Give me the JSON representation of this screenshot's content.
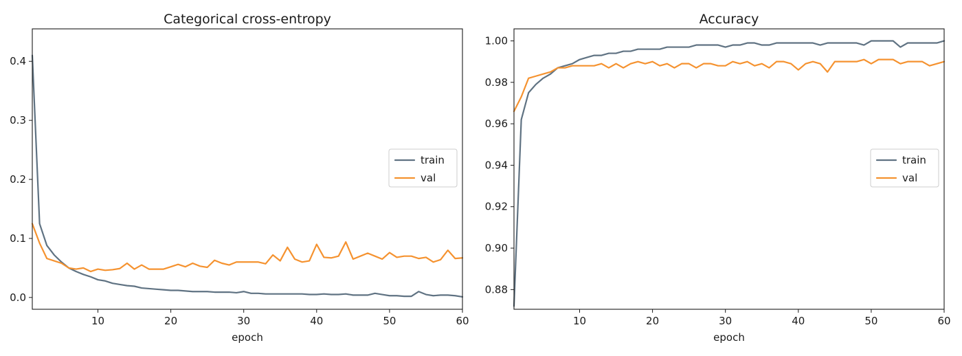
{
  "colors": {
    "train": "#5f7282",
    "val": "#f5922f"
  },
  "chart_data": [
    {
      "type": "line",
      "title": "Categorical cross-entropy",
      "xlabel": "epoch",
      "ylabel": "",
      "xlim": [
        1,
        60
      ],
      "ylim": [
        -0.02,
        0.455
      ],
      "xticks": [
        10,
        20,
        30,
        40,
        50,
        60
      ],
      "yticks": [
        0.0,
        0.1,
        0.2,
        0.3,
        0.4
      ],
      "ytick_labels": [
        "0.0",
        "0.1",
        "0.2",
        "0.3",
        "0.4"
      ],
      "grid": false,
      "legend_position": "center-right",
      "x": [
        1,
        2,
        3,
        4,
        5,
        6,
        7,
        8,
        9,
        10,
        11,
        12,
        13,
        14,
        15,
        16,
        17,
        18,
        19,
        20,
        21,
        22,
        23,
        24,
        25,
        26,
        27,
        28,
        29,
        30,
        31,
        32,
        33,
        34,
        35,
        36,
        37,
        38,
        39,
        40,
        41,
        42,
        43,
        44,
        45,
        46,
        47,
        48,
        49,
        50,
        51,
        52,
        53,
        54,
        55,
        56,
        57,
        58,
        59,
        60
      ],
      "series": [
        {
          "name": "train",
          "values": [
            0.41,
            0.125,
            0.088,
            0.072,
            0.06,
            0.05,
            0.044,
            0.039,
            0.035,
            0.03,
            0.028,
            0.024,
            0.022,
            0.02,
            0.019,
            0.016,
            0.015,
            0.014,
            0.013,
            0.012,
            0.012,
            0.011,
            0.01,
            0.01,
            0.01,
            0.009,
            0.009,
            0.009,
            0.008,
            0.01,
            0.007,
            0.007,
            0.006,
            0.006,
            0.006,
            0.006,
            0.006,
            0.006,
            0.005,
            0.005,
            0.006,
            0.005,
            0.005,
            0.006,
            0.004,
            0.004,
            0.004,
            0.007,
            0.005,
            0.003,
            0.003,
            0.002,
            0.002,
            0.01,
            0.005,
            0.003,
            0.004,
            0.004,
            0.003,
            0.001
          ]
        },
        {
          "name": "val",
          "values": [
            0.125,
            0.092,
            0.066,
            0.062,
            0.058,
            0.05,
            0.048,
            0.05,
            0.044,
            0.048,
            0.046,
            0.047,
            0.049,
            0.058,
            0.048,
            0.055,
            0.048,
            0.048,
            0.048,
            0.052,
            0.056,
            0.052,
            0.058,
            0.053,
            0.051,
            0.063,
            0.058,
            0.055,
            0.06,
            0.06,
            0.06,
            0.06,
            0.057,
            0.072,
            0.062,
            0.085,
            0.065,
            0.06,
            0.062,
            0.09,
            0.068,
            0.067,
            0.07,
            0.094,
            0.065,
            0.07,
            0.075,
            0.07,
            0.065,
            0.076,
            0.068,
            0.07,
            0.07,
            0.066,
            0.068,
            0.06,
            0.064,
            0.08,
            0.066,
            0.067
          ]
        }
      ]
    },
    {
      "type": "line",
      "title": "Accuracy",
      "xlabel": "epoch",
      "ylabel": "",
      "xlim": [
        1,
        60
      ],
      "ylim": [
        0.8705,
        1.0058
      ],
      "xticks": [
        10,
        20,
        30,
        40,
        50,
        60
      ],
      "yticks": [
        0.88,
        0.9,
        0.92,
        0.94,
        0.96,
        0.98,
        1.0
      ],
      "ytick_labels": [
        "0.88",
        "0.90",
        "0.92",
        "0.94",
        "0.96",
        "0.98",
        "1.00"
      ],
      "grid": false,
      "legend_position": "center-right",
      "x": [
        1,
        2,
        3,
        4,
        5,
        6,
        7,
        8,
        9,
        10,
        11,
        12,
        13,
        14,
        15,
        16,
        17,
        18,
        19,
        20,
        21,
        22,
        23,
        24,
        25,
        26,
        27,
        28,
        29,
        30,
        31,
        32,
        33,
        34,
        35,
        36,
        37,
        38,
        39,
        40,
        41,
        42,
        43,
        44,
        45,
        46,
        47,
        48,
        49,
        50,
        51,
        52,
        53,
        54,
        55,
        56,
        57,
        58,
        59,
        60
      ],
      "series": [
        {
          "name": "train",
          "values": [
            0.872,
            0.962,
            0.975,
            0.979,
            0.982,
            0.984,
            0.987,
            0.988,
            0.989,
            0.991,
            0.992,
            0.993,
            0.993,
            0.994,
            0.994,
            0.995,
            0.995,
            0.996,
            0.996,
            0.996,
            0.996,
            0.997,
            0.997,
            0.997,
            0.997,
            0.998,
            0.998,
            0.998,
            0.998,
            0.997,
            0.998,
            0.998,
            0.999,
            0.999,
            0.998,
            0.998,
            0.999,
            0.999,
            0.999,
            0.999,
            0.999,
            0.999,
            0.998,
            0.999,
            0.999,
            0.999,
            0.999,
            0.999,
            0.998,
            1.0,
            1.0,
            1.0,
            1.0,
            0.997,
            0.999,
            0.999,
            0.999,
            0.999,
            0.999,
            1.0
          ]
        },
        {
          "name": "val",
          "values": [
            0.966,
            0.973,
            0.982,
            0.983,
            0.984,
            0.985,
            0.987,
            0.987,
            0.988,
            0.988,
            0.988,
            0.988,
            0.989,
            0.987,
            0.989,
            0.987,
            0.989,
            0.99,
            0.989,
            0.99,
            0.988,
            0.989,
            0.987,
            0.989,
            0.989,
            0.987,
            0.989,
            0.989,
            0.988,
            0.988,
            0.99,
            0.989,
            0.99,
            0.988,
            0.989,
            0.987,
            0.99,
            0.99,
            0.989,
            0.986,
            0.989,
            0.99,
            0.989,
            0.985,
            0.99,
            0.99,
            0.99,
            0.99,
            0.991,
            0.989,
            0.991,
            0.991,
            0.991,
            0.989,
            0.99,
            0.99,
            0.99,
            0.988,
            0.989,
            0.99
          ]
        }
      ]
    }
  ]
}
